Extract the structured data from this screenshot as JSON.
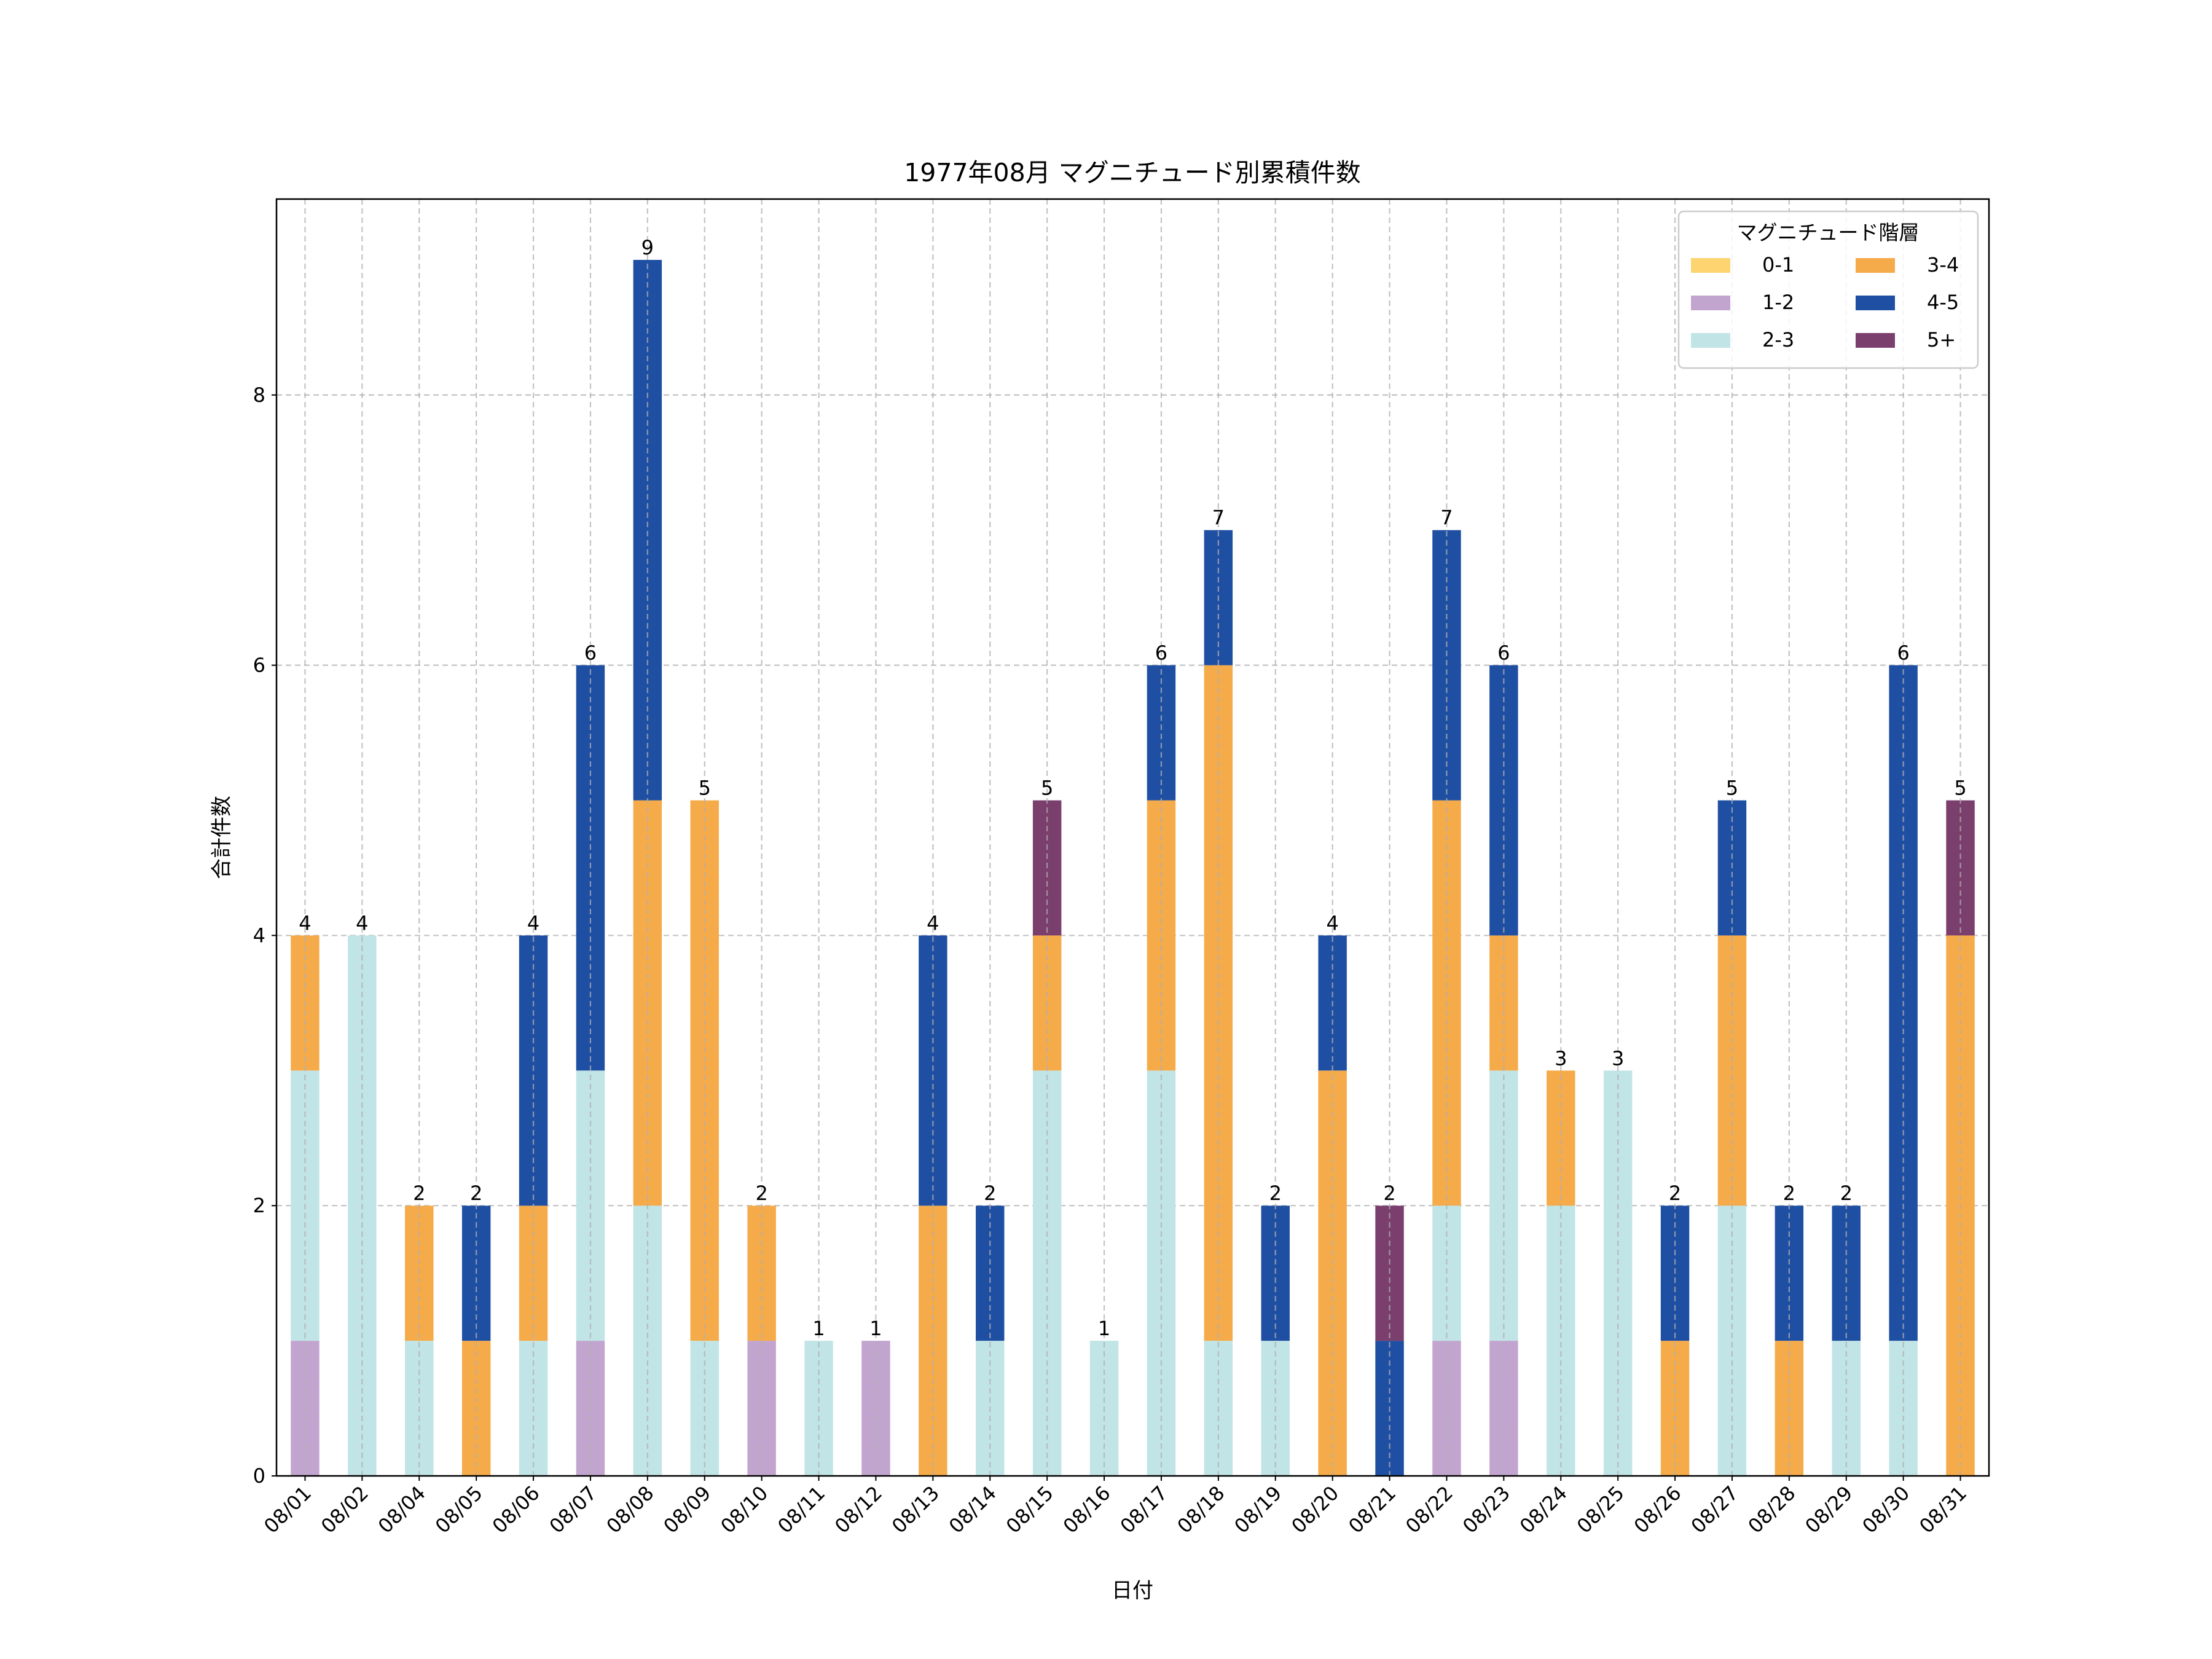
{
  "chart_data": {
    "type": "bar",
    "stacked": true,
    "title": "1977年08月 マグニチュード別累積件数",
    "xlabel": "日付",
    "ylabel": "合計件数",
    "ylim": [
      0,
      9.45
    ],
    "yticks": [
      0,
      2,
      4,
      6,
      8
    ],
    "grid": true,
    "legend": {
      "title": "マグニチュード階層",
      "placement": "top-right"
    },
    "categories": [
      "08/01",
      "08/02",
      "08/04",
      "08/05",
      "08/06",
      "08/07",
      "08/08",
      "08/09",
      "08/10",
      "08/11",
      "08/12",
      "08/13",
      "08/14",
      "08/15",
      "08/16",
      "08/17",
      "08/18",
      "08/19",
      "08/20",
      "08/21",
      "08/22",
      "08/23",
      "08/24",
      "08/25",
      "08/26",
      "08/27",
      "08/28",
      "08/29",
      "08/30",
      "08/31"
    ],
    "series": [
      {
        "name": "0-1",
        "color": "#FDD470",
        "values": [
          0,
          0,
          0,
          0,
          0,
          0,
          0,
          0,
          0,
          0,
          0,
          0,
          0,
          0,
          0,
          0,
          0,
          0,
          0,
          0,
          0,
          0,
          0,
          0,
          0,
          0,
          0,
          0,
          0,
          0
        ]
      },
      {
        "name": "1-2",
        "color": "#C2A5CF",
        "values": [
          1,
          0,
          0,
          0,
          0,
          1,
          0,
          0,
          1,
          0,
          1,
          0,
          0,
          0,
          0,
          0,
          0,
          0,
          0,
          0,
          1,
          1,
          0,
          0,
          0,
          0,
          0,
          0,
          0,
          0
        ]
      },
      {
        "name": "2-3",
        "color": "#C1E4E6",
        "values": [
          2,
          4,
          1,
          0,
          1,
          2,
          2,
          1,
          0,
          1,
          0,
          0,
          1,
          3,
          1,
          3,
          1,
          1,
          0,
          0,
          1,
          2,
          2,
          3,
          0,
          2,
          0,
          1,
          1,
          0
        ]
      },
      {
        "name": "3-4",
        "color": "#F5AB4A",
        "values": [
          1,
          0,
          1,
          1,
          1,
          0,
          3,
          4,
          1,
          0,
          0,
          2,
          0,
          1,
          0,
          2,
          5,
          0,
          3,
          0,
          3,
          1,
          1,
          0,
          1,
          2,
          1,
          0,
          0,
          4
        ]
      },
      {
        "name": "4-5",
        "color": "#1F4FA3",
        "values": [
          0,
          0,
          0,
          1,
          2,
          3,
          4,
          0,
          0,
          0,
          0,
          2,
          1,
          0,
          0,
          1,
          1,
          1,
          1,
          1,
          2,
          2,
          0,
          0,
          1,
          1,
          1,
          1,
          5,
          0
        ]
      },
      {
        "name": "5+",
        "color": "#7B3F6E",
        "values": [
          0,
          0,
          0,
          0,
          0,
          0,
          0,
          0,
          0,
          0,
          0,
          0,
          0,
          1,
          0,
          0,
          0,
          0,
          0,
          1,
          0,
          0,
          0,
          0,
          0,
          0,
          0,
          0,
          0,
          1
        ]
      }
    ],
    "totals": [
      4,
      4,
      2,
      2,
      4,
      6,
      9,
      5,
      2,
      1,
      1,
      4,
      2,
      5,
      1,
      6,
      7,
      2,
      4,
      2,
      7,
      6,
      3,
      3,
      2,
      5,
      2,
      2,
      6,
      5
    ]
  }
}
